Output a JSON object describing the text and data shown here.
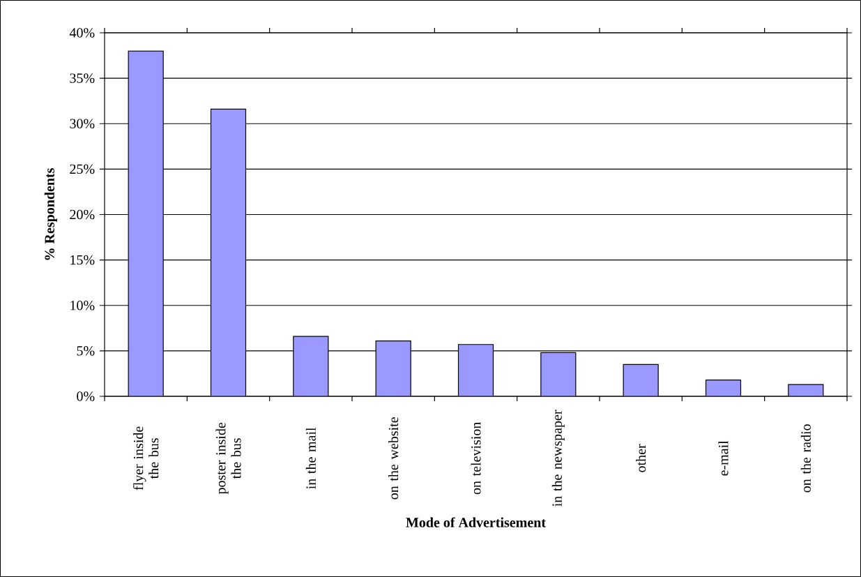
{
  "chart_data": {
    "type": "bar",
    "categories": [
      "flyer inside the bus",
      "poster inside the bus",
      "in the mail",
      "on the website",
      "on television",
      "in the newspaper",
      "other",
      "e-mail",
      "on the radio"
    ],
    "values": [
      38,
      31.6,
      6.6,
      6.1,
      5.7,
      4.8,
      3.5,
      1.8,
      1.3
    ],
    "color": "#9999ff",
    "xlabel": "Mode of Advertisement",
    "ylabel": "% Respondents",
    "ylim": [
      0,
      40
    ],
    "yticks": [
      {
        "value": 0,
        "label": "0%"
      },
      {
        "value": 5,
        "label": "5%"
      },
      {
        "value": 10,
        "label": "10%"
      },
      {
        "value": 15,
        "label": "15%"
      },
      {
        "value": 20,
        "label": "20%"
      },
      {
        "value": 25,
        "label": "25%"
      },
      {
        "value": 30,
        "label": "30%"
      },
      {
        "value": 35,
        "label": "35%"
      },
      {
        "value": 40,
        "label": "40%"
      }
    ],
    "grid": "y"
  }
}
